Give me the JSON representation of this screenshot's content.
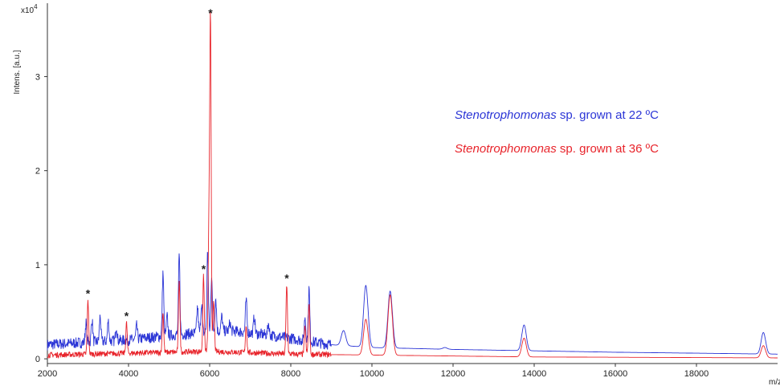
{
  "chart_data": {
    "type": "line",
    "xlabel": "m/z",
    "ylabel": "Intens. [a.u.]",
    "y_multiplier_base": "x10",
    "y_multiplier_exp": "4",
    "xlim": [
      2000,
      20000
    ],
    "ylim": [
      -0.05,
      3.78
    ],
    "x_ticks": [
      2000,
      4000,
      6000,
      8000,
      10000,
      12000,
      14000,
      16000,
      18000
    ],
    "x_tick_labels": [
      "2000",
      "4000",
      "6000",
      "8000",
      "10000",
      "12000",
      "14000",
      "16000",
      "18000"
    ],
    "y_ticks": [
      0,
      1,
      2,
      3
    ],
    "y_tick_labels": [
      "0",
      "1",
      "2",
      "3"
    ],
    "grid": false,
    "legend_position": "right",
    "series": [
      {
        "name": "Stenotrophomonas sp. grown at 22 ºC",
        "legend_italic": "Stenotrophomonas",
        "legend_rest": " sp. grown at 22 ºC",
        "color": "#2b35d6",
        "baseline": [
          [
            2000,
            0.15
          ],
          [
            4000,
            0.2
          ],
          [
            5000,
            0.25
          ],
          [
            6500,
            0.3
          ],
          [
            7500,
            0.25
          ],
          [
            9000,
            0.15
          ],
          [
            10000,
            0.12
          ],
          [
            12000,
            0.1
          ],
          [
            16000,
            0.07
          ],
          [
            20000,
            0.05
          ]
        ],
        "peaks": [
          {
            "x": 2950,
            "y": 0.38
          },
          {
            "x": 3100,
            "y": 0.42
          },
          {
            "x": 3300,
            "y": 0.45
          },
          {
            "x": 3500,
            "y": 0.4
          },
          {
            "x": 3700,
            "y": 0.35
          },
          {
            "x": 4200,
            "y": 0.35
          },
          {
            "x": 4850,
            "y": 0.92
          },
          {
            "x": 4950,
            "y": 0.45
          },
          {
            "x": 5250,
            "y": 1.1
          },
          {
            "x": 5700,
            "y": 0.55
          },
          {
            "x": 5800,
            "y": 0.6
          },
          {
            "x": 5950,
            "y": 1.15
          },
          {
            "x": 6050,
            "y": 0.9
          },
          {
            "x": 6150,
            "y": 0.65
          },
          {
            "x": 6300,
            "y": 0.45
          },
          {
            "x": 6500,
            "y": 0.38
          },
          {
            "x": 6900,
            "y": 0.62
          },
          {
            "x": 7100,
            "y": 0.45
          },
          {
            "x": 7450,
            "y": 0.38
          },
          {
            "x": 8350,
            "y": 0.45
          },
          {
            "x": 8450,
            "y": 0.75
          },
          {
            "x": 9300,
            "y": 0.3
          },
          {
            "x": 9850,
            "y": 0.78
          },
          {
            "x": 10450,
            "y": 0.72
          },
          {
            "x": 11800,
            "y": 0.12
          },
          {
            "x": 13750,
            "y": 0.36
          },
          {
            "x": 19650,
            "y": 0.28
          }
        ]
      },
      {
        "name": "Stenotrophomonas sp. grown at 36 ºC",
        "legend_italic": "Stenotrophomonas",
        "legend_rest": " sp. grown at 36 ºC",
        "color": "#e8242b",
        "baseline": [
          [
            2000,
            0.04
          ],
          [
            4000,
            0.06
          ],
          [
            6000,
            0.08
          ],
          [
            8000,
            0.05
          ],
          [
            10000,
            0.04
          ],
          [
            14000,
            0.02
          ],
          [
            20000,
            0.01
          ]
        ],
        "peaks": [
          {
            "x": 3000,
            "y": 0.62
          },
          {
            "x": 3950,
            "y": 0.38
          },
          {
            "x": 4850,
            "y": 0.5
          },
          {
            "x": 5250,
            "y": 0.85
          },
          {
            "x": 5850,
            "y": 0.88
          },
          {
            "x": 5980,
            "y": 1.32
          },
          {
            "x": 6020,
            "y": 3.6
          },
          {
            "x": 6100,
            "y": 0.6
          },
          {
            "x": 6900,
            "y": 0.35
          },
          {
            "x": 7900,
            "y": 0.78
          },
          {
            "x": 8350,
            "y": 0.35
          },
          {
            "x": 8450,
            "y": 0.58
          },
          {
            "x": 9850,
            "y": 0.42
          },
          {
            "x": 10450,
            "y": 0.68
          },
          {
            "x": 13750,
            "y": 0.22
          },
          {
            "x": 19650,
            "y": 0.14
          }
        ]
      }
    ],
    "annotations": [
      {
        "x": 3000,
        "y": 0.62,
        "text": "*"
      },
      {
        "x": 3950,
        "y": 0.38,
        "text": "*"
      },
      {
        "x": 5850,
        "y": 0.88,
        "text": "*"
      },
      {
        "x": 6020,
        "y": 3.6,
        "text": "*"
      },
      {
        "x": 7900,
        "y": 0.78,
        "text": "*"
      }
    ]
  }
}
